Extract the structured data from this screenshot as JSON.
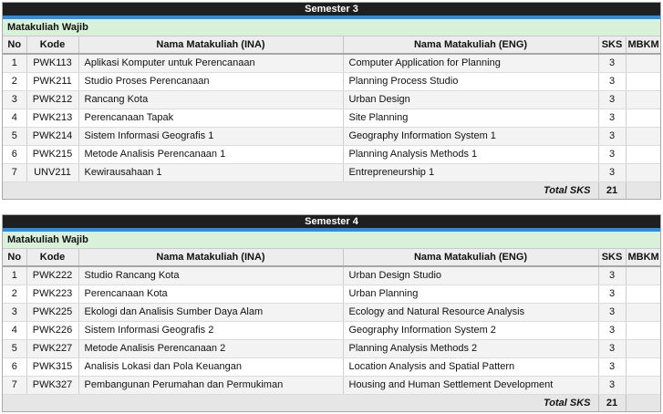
{
  "colors": {
    "title_bar_bg": "#1f1f1f",
    "title_text": "#ffffff",
    "accent_stripe": "#2a8ce2",
    "section_row_bg": "#d9f0d9",
    "header_row_bg": "#ededed",
    "odd_row_bg": "#f3f3f3",
    "even_row_bg": "#ffffff",
    "total_row_bg": "#e6e6e6"
  },
  "columns": [
    "No",
    "Kode",
    "Nama Matakuliah (INA)",
    "Nama Matakuliah (ENG)",
    "SKS",
    "MBKM"
  ],
  "tables": [
    {
      "title": "Semester 3",
      "section": "Matakuliah Wajib",
      "rows": [
        {
          "no": "1",
          "kode": "PWK113",
          "ina": "Aplikasi Komputer untuk Perencanaan",
          "eng": "Computer Application for Planning",
          "sks": "3",
          "mbkm": ""
        },
        {
          "no": "2",
          "kode": "PWK211",
          "ina": "Studio Proses Perencanaan",
          "eng": "Planning Process Studio",
          "sks": "3",
          "mbkm": ""
        },
        {
          "no": "3",
          "kode": "PWK212",
          "ina": "Rancang Kota",
          "eng": "Urban Design",
          "sks": "3",
          "mbkm": ""
        },
        {
          "no": "4",
          "kode": "PWK213",
          "ina": "Perencanaan Tapak",
          "eng": "Site Planning",
          "sks": "3",
          "mbkm": ""
        },
        {
          "no": "5",
          "kode": "PWK214",
          "ina": "Sistem Informasi Geografis 1",
          "eng": "Geography Information System 1",
          "sks": "3",
          "mbkm": ""
        },
        {
          "no": "6",
          "kode": "PWK215",
          "ina": "Metode Analisis Perencanaan 1",
          "eng": "Planning Analysis Methods 1",
          "sks": "3",
          "mbkm": ""
        },
        {
          "no": "7",
          "kode": "UNV211",
          "ina": "Kewirausahaan 1",
          "eng": "Entrepreneurship 1",
          "sks": "3",
          "mbkm": ""
        }
      ],
      "total_label": "Total SKS",
      "total_value": "21"
    },
    {
      "title": "Semester 4",
      "section": "Matakuliah Wajib",
      "rows": [
        {
          "no": "1",
          "kode": "PWK222",
          "ina": "Studio Rancang Kota",
          "eng": "Urban Design Studio",
          "sks": "3",
          "mbkm": ""
        },
        {
          "no": "2",
          "kode": "PWK223",
          "ina": "Perencanaan Kota",
          "eng": "Urban Planning",
          "sks": "3",
          "mbkm": ""
        },
        {
          "no": "3",
          "kode": "PWK225",
          "ina": "Ekologi dan Analisis Sumber Daya Alam",
          "eng": "Ecology and Natural Resource Analysis",
          "sks": "3",
          "mbkm": ""
        },
        {
          "no": "4",
          "kode": "PWK226",
          "ina": "Sistem Informasi Geografis 2",
          "eng": "Geography Information System 2",
          "sks": "3",
          "mbkm": ""
        },
        {
          "no": "5",
          "kode": "PWK227",
          "ina": "Metode Analisis Perencanaan 2",
          "eng": "Planning Analysis Methods 2",
          "sks": "3",
          "mbkm": ""
        },
        {
          "no": "6",
          "kode": "PWK315",
          "ina": "Analisis Lokasi dan Pola Keuangan",
          "eng": "Location Analysis and Spatial Pattern",
          "sks": "3",
          "mbkm": ""
        },
        {
          "no": "7",
          "kode": "PWK327",
          "ina": "Pembangunan Perumahan dan Permukiman",
          "eng": "Housing and Human Settlement Development",
          "sks": "3",
          "mbkm": ""
        }
      ],
      "total_label": "Total SKS",
      "total_value": "21"
    }
  ]
}
